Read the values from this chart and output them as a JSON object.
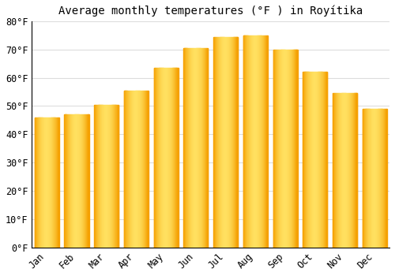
{
  "title": "Average monthly temperatures (°F ) in Royítika",
  "months": [
    "Jan",
    "Feb",
    "Mar",
    "Apr",
    "May",
    "Jun",
    "Jul",
    "Aug",
    "Sep",
    "Oct",
    "Nov",
    "Dec"
  ],
  "values": [
    46,
    47,
    50.5,
    55.5,
    63.5,
    70.5,
    74.5,
    75,
    70,
    62,
    54.5,
    49
  ],
  "bar_color_main": "#FFCC33",
  "bar_color_light": "#FFE580",
  "bar_color_dark": "#F5A000",
  "background_color": "#FFFFFF",
  "plot_bg_color": "#FFFFFF",
  "ylim": [
    0,
    80
  ],
  "yticks": [
    0,
    10,
    20,
    30,
    40,
    50,
    60,
    70,
    80
  ],
  "ytick_labels": [
    "0°F",
    "10°F",
    "20°F",
    "30°F",
    "40°F",
    "50°F",
    "60°F",
    "70°F",
    "80°F"
  ],
  "title_fontsize": 10,
  "tick_fontsize": 8.5,
  "grid_color": "#DDDDDD",
  "font_family": "monospace"
}
